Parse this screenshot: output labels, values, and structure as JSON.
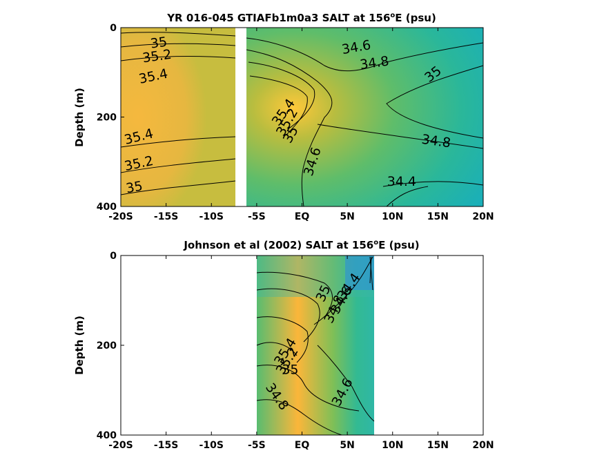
{
  "chart_data": [
    {
      "type": "contour",
      "title_prefix": "YR 016-045 GTIAFb1m0a3 SALT at 156",
      "title_sup": "o",
      "title_suffix": "E (psu)",
      "ylabel": "Depth (m)",
      "xlim": [
        -20,
        20
      ],
      "ylim": [
        0,
        400
      ],
      "y_reversed": true,
      "x_ticks": [
        -20,
        -15,
        -10,
        -5,
        0,
        5,
        10,
        15,
        20
      ],
      "x_tick_labels": [
        "-20S",
        "-15S",
        "-10S",
        "-5S",
        "EQ",
        "5N",
        "10N",
        "15N",
        "20N"
      ],
      "y_ticks": [
        0,
        200,
        400
      ],
      "y_tick_labels": [
        "0",
        "200",
        "400"
      ],
      "gap": [
        -7.5,
        -6.3
      ],
      "contour_labels": [
        {
          "text": "35",
          "x": -15.8,
          "y": 35,
          "angle": -8
        },
        {
          "text": "35.2",
          "x": -16.0,
          "y": 65,
          "angle": -8
        },
        {
          "text": "35.4",
          "x": -16.4,
          "y": 110,
          "angle": -12
        },
        {
          "text": "35.4",
          "x": -18.0,
          "y": 245,
          "angle": -14
        },
        {
          "text": "35.2",
          "x": -18.0,
          "y": 305,
          "angle": -12
        },
        {
          "text": "35",
          "x": -18.5,
          "y": 358,
          "angle": -10
        },
        {
          "text": "34.6",
          "x": 6.0,
          "y": 45,
          "angle": -10
        },
        {
          "text": "34.8",
          "x": 8.0,
          "y": 80,
          "angle": -8
        },
        {
          "text": "35",
          "x": 14.5,
          "y": 105,
          "angle": -38
        },
        {
          "text": "35.4",
          "x": -2.0,
          "y": 190,
          "angle": -55
        },
        {
          "text": "35.2",
          "x": -1.6,
          "y": 212,
          "angle": -60
        },
        {
          "text": "35",
          "x": -1.2,
          "y": 240,
          "angle": -60
        },
        {
          "text": "34.6",
          "x": 1.2,
          "y": 300,
          "angle": -72
        },
        {
          "text": "34.8",
          "x": 14.8,
          "y": 255,
          "angle": 8
        },
        {
          "text": "34.4",
          "x": 11.0,
          "y": 345,
          "angle": 0
        }
      ]
    },
    {
      "type": "contour",
      "title_prefix": "Johnson et al (2002) SALT at 156",
      "title_sup": "o",
      "title_suffix": "E (psu)",
      "ylabel": "Depth (m)",
      "xlim": [
        -20,
        20
      ],
      "ylim": [
        0,
        400
      ],
      "y_reversed": true,
      "x_ticks": [
        -20,
        -15,
        -10,
        -5,
        0,
        5,
        10,
        15,
        20
      ],
      "x_tick_labels": [
        "-20S",
        "-15S",
        "-10S",
        "-5S",
        "EQ",
        "5N",
        "10N",
        "15N",
        "20N"
      ],
      "y_ticks": [
        0,
        200,
        400
      ],
      "y_tick_labels": [
        "0",
        "200",
        "400"
      ],
      "data_extent": [
        -5,
        8
      ],
      "contour_labels": [
        {
          "text": "34.4",
          "x": 5.2,
          "y": 70,
          "angle": -55
        },
        {
          "text": "34.6",
          "x": 4.4,
          "y": 100,
          "angle": -60
        },
        {
          "text": "34.8",
          "x": 3.6,
          "y": 120,
          "angle": -65
        },
        {
          "text": "35",
          "x": 2.4,
          "y": 85,
          "angle": -65
        },
        {
          "text": "35.4",
          "x": -1.8,
          "y": 215,
          "angle": -58
        },
        {
          "text": "35.2",
          "x": -1.6,
          "y": 235,
          "angle": -58
        },
        {
          "text": "35",
          "x": -1.3,
          "y": 255,
          "angle": 0
        },
        {
          "text": "34.6",
          "x": 4.5,
          "y": 305,
          "angle": -62
        },
        {
          "text": "34.8",
          "x": -2.8,
          "y": 315,
          "angle": 55
        }
      ]
    }
  ]
}
